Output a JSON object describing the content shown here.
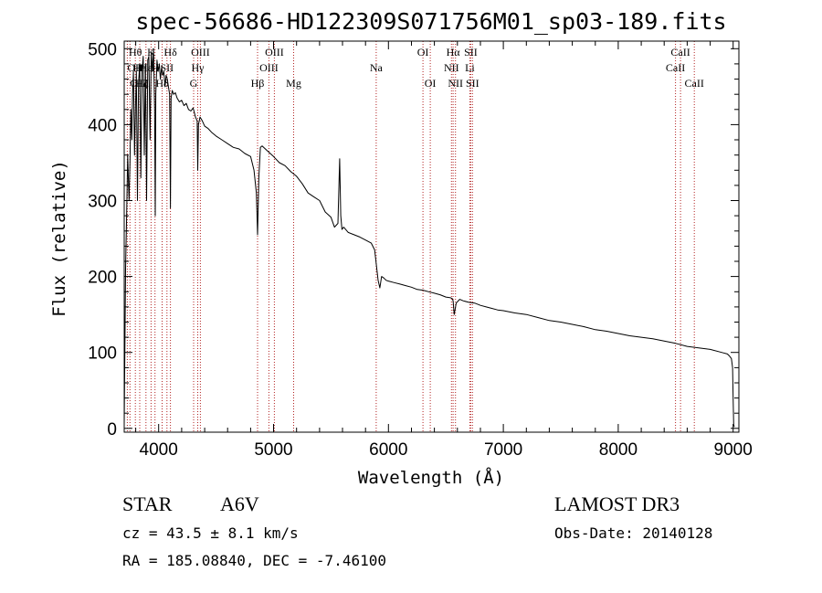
{
  "colors": {
    "spectrum": "#000000",
    "line_marker": "#b22222",
    "axes": "#000000"
  },
  "info": {
    "object_class": "STAR",
    "subclass": "A6V",
    "survey": "LAMOST DR3",
    "cz": "cz = 43.5 ± 8.1 km/s",
    "obs_date": "Obs-Date: 20140128",
    "coords": "RA = 185.08840, DEC =  -7.46100"
  },
  "chart_data": {
    "type": "line",
    "title": "spec-56686-HD122309S071756M01_sp03-189.fits",
    "xlabel": "Wavelength (Å)",
    "ylabel": "Flux (relative)",
    "xlim": [
      3700,
      9050
    ],
    "ylim": [
      -5,
      510
    ],
    "xticks": [
      4000,
      5000,
      6000,
      7000,
      8000,
      9000
    ],
    "yticks": [
      0,
      100,
      200,
      300,
      400,
      500
    ],
    "series": [
      {
        "name": "spectrum",
        "x": [
          3700,
          3712,
          3722,
          3730,
          3736,
          3742,
          3750,
          3758,
          3766,
          3772,
          3780,
          3790,
          3798,
          3806,
          3815,
          3825,
          3835,
          3845,
          3855,
          3865,
          3875,
          3885,
          3895,
          3905,
          3915,
          3925,
          3935,
          3945,
          3955,
          3965,
          3970,
          3975,
          3985,
          3995,
          4005,
          4015,
          4025,
          4035,
          4045,
          4055,
          4065,
          4075,
          4085,
          4095,
          4102,
          4108,
          4118,
          4130,
          4145,
          4160,
          4180,
          4200,
          4220,
          4240,
          4260,
          4280,
          4300,
          4320,
          4335,
          4340,
          4346,
          4360,
          4380,
          4400,
          4430,
          4460,
          4500,
          4550,
          4600,
          4650,
          4700,
          4750,
          4800,
          4830,
          4850,
          4861,
          4872,
          4885,
          4900,
          4950,
          5000,
          5050,
          5100,
          5150,
          5200,
          5250,
          5300,
          5350,
          5400,
          5450,
          5500,
          5530,
          5560,
          5575,
          5585,
          5595,
          5610,
          5650,
          5700,
          5750,
          5800,
          5850,
          5880,
          5895,
          5910,
          5925,
          5940,
          5960,
          5980,
          6000,
          6050,
          6100,
          6150,
          6200,
          6250,
          6300,
          6350,
          6400,
          6450,
          6500,
          6540,
          6555,
          6563,
          6572,
          6590,
          6620,
          6650,
          6700,
          6750,
          6800,
          6850,
          6900,
          6950,
          7000,
          7100,
          7200,
          7300,
          7400,
          7500,
          7600,
          7700,
          7800,
          7900,
          8000,
          8100,
          8200,
          8300,
          8400,
          8500,
          8600,
          8700,
          8800,
          8900,
          8950,
          8970,
          8985,
          8995,
          9000,
          9005,
          9010
        ],
        "y": [
          5,
          210,
          290,
          360,
          330,
          300,
          350,
          420,
          380,
          440,
          470,
          360,
          420,
          470,
          300,
          455,
          480,
          330,
          470,
          490,
          360,
          480,
          300,
          485,
          490,
          380,
          495,
          470,
          500,
          420,
          280,
          440,
          485,
          470,
          480,
          460,
          475,
          465,
          470,
          450,
          465,
          460,
          450,
          440,
          290,
          435,
          445,
          440,
          442,
          435,
          430,
          432,
          425,
          428,
          420,
          418,
          422,
          410,
          405,
          340,
          400,
          410,
          405,
          398,
          395,
          390,
          385,
          380,
          375,
          370,
          368,
          362,
          358,
          340,
          310,
          255,
          330,
          370,
          372,
          365,
          358,
          350,
          346,
          338,
          332,
          322,
          310,
          305,
          300,
          285,
          278,
          265,
          270,
          355,
          280,
          262,
          265,
          258,
          255,
          252,
          248,
          244,
          235,
          215,
          195,
          185,
          200,
          198,
          195,
          194,
          192,
          190,
          188,
          186,
          183,
          182,
          180,
          178,
          176,
          173,
          172,
          171,
          168,
          150,
          165,
          170,
          168,
          166,
          165,
          162,
          160,
          158,
          156,
          155,
          152,
          150,
          146,
          142,
          140,
          137,
          134,
          130,
          128,
          125,
          122,
          120,
          118,
          115,
          112,
          108,
          106,
          104,
          100,
          98,
          95,
          92,
          80,
          40,
          5,
          2
        ]
      }
    ],
    "lines": [
      {
        "label": "Hθ",
        "wave": 3797,
        "row": 0,
        "align": "middle"
      },
      {
        "label": "K",
        "wave": 3934,
        "row": 0,
        "align": "middle"
      },
      {
        "label": "Hδ",
        "wave": 4102,
        "row": 0,
        "align": "middle"
      },
      {
        "label": "OIII",
        "wave": 4363,
        "row": 0,
        "align": "middle"
      },
      {
        "label": "OIII",
        "wave": 5007,
        "row": 0,
        "align": "middle"
      },
      {
        "label": "OI",
        "wave": 6300,
        "row": 0,
        "align": "middle"
      },
      {
        "label": "Hα",
        "wave": 6563,
        "row": 0,
        "align": "middle"
      },
      {
        "label": "SII",
        "wave": 6716,
        "row": 0,
        "align": "middle"
      },
      {
        "label": "CaII",
        "wave": 8542,
        "row": 0,
        "align": "middle"
      },
      {
        "label": "OII",
        "wave": 3727,
        "row": 1,
        "align": "start"
      },
      {
        "label": "Hη",
        "wave": 3835,
        "row": 1,
        "align": "middle"
      },
      {
        "label": "Hε",
        "wave": 3889,
        "row": 1,
        "align": "middle"
      },
      {
        "label": "H",
        "wave": 3968,
        "row": 1,
        "align": "middle"
      },
      {
        "label": "SII",
        "wave": 4072,
        "row": 1,
        "align": "middle"
      },
      {
        "label": "Hγ",
        "wave": 4340,
        "row": 1,
        "align": "middle"
      },
      {
        "label": "OIII",
        "wave": 4959,
        "row": 1,
        "align": "middle"
      },
      {
        "label": "Na",
        "wave": 5893,
        "row": 1,
        "align": "middle"
      },
      {
        "label": "NII",
        "wave": 6548,
        "row": 1,
        "align": "middle"
      },
      {
        "label": "Li",
        "wave": 6708,
        "row": 1,
        "align": "middle"
      },
      {
        "label": "CaII",
        "wave": 8498,
        "row": 1,
        "align": "middle"
      },
      {
        "label": "OIII",
        "wave": 3750,
        "row": 2,
        "align": "start"
      },
      {
        "label": "Hζ",
        "wave": 3850,
        "row": 2,
        "align": "middle"
      },
      {
        "label": "Hδ",
        "wave": 4030,
        "row": 2,
        "align": "middle"
      },
      {
        "label": "G",
        "wave": 4304,
        "row": 2,
        "align": "middle"
      },
      {
        "label": "Hβ",
        "wave": 4861,
        "row": 2,
        "align": "middle"
      },
      {
        "label": "Mg",
        "wave": 5175,
        "row": 2,
        "align": "middle"
      },
      {
        "label": "OI",
        "wave": 6364,
        "row": 2,
        "align": "middle"
      },
      {
        "label": "NII",
        "wave": 6583,
        "row": 2,
        "align": "middle"
      },
      {
        "label": "SII",
        "wave": 6731,
        "row": 2,
        "align": "middle"
      },
      {
        "label": "CaII",
        "wave": 8662,
        "row": 2,
        "align": "middle"
      }
    ],
    "marker_waves": [
      3727,
      3750,
      3797,
      3835,
      3889,
      3934,
      3968,
      4030,
      4072,
      4102,
      4304,
      4340,
      4363,
      4861,
      4959,
      5007,
      5175,
      5893,
      6300,
      6364,
      6548,
      6563,
      6583,
      6708,
      6716,
      6731,
      8498,
      8542,
      8662
    ]
  }
}
